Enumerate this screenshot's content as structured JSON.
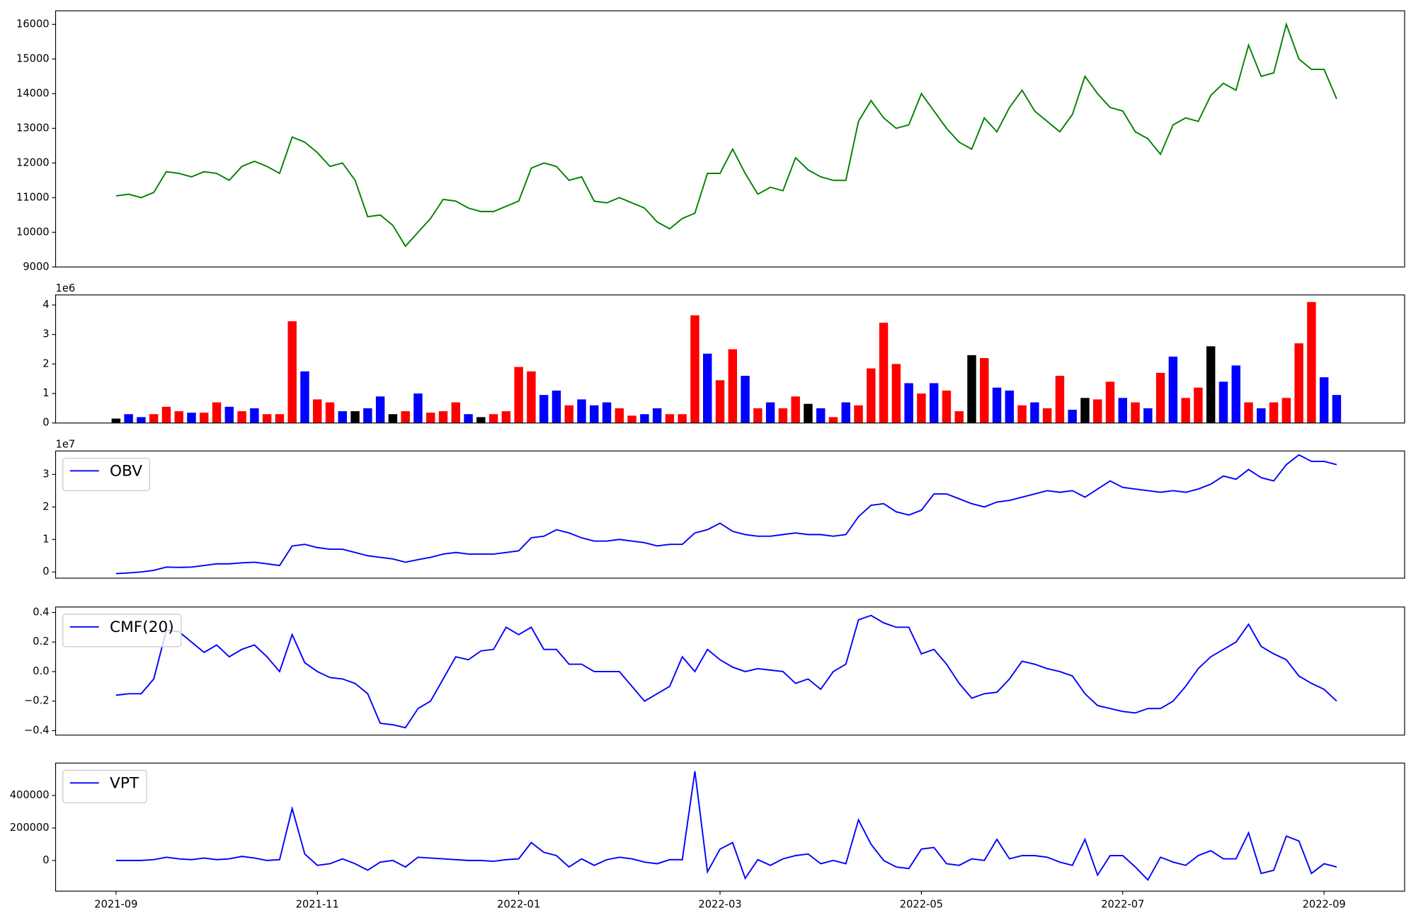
{
  "chart_data": [
    {
      "type": "line",
      "color": "#008000",
      "x": [
        0,
        0.125,
        0.25,
        0.375,
        0.5,
        0.625,
        0.75,
        0.875,
        1,
        1.125,
        1.25,
        1.375,
        1.5,
        1.625,
        1.75,
        1.875,
        2,
        2.125,
        2.25,
        2.375,
        2.5,
        2.625,
        2.75,
        2.875,
        3,
        3.125,
        3.25,
        3.375,
        3.5,
        3.625,
        3.75,
        3.875,
        4,
        4.125,
        4.25,
        4.375,
        4.5,
        4.625,
        4.75,
        4.875,
        5,
        5.125,
        5.25,
        5.375,
        5.5,
        5.625,
        5.75,
        5.875,
        6,
        6.125,
        6.25,
        6.375,
        6.5,
        6.625,
        6.75,
        6.875,
        7,
        7.125,
        7.25,
        7.375,
        7.5,
        7.625,
        7.75,
        7.875,
        8,
        8.125,
        8.25,
        8.375,
        8.5,
        8.625,
        8.75,
        8.875,
        9,
        9.125,
        9.25,
        9.375,
        9.5,
        9.625,
        9.75,
        9.875,
        10,
        10.125,
        10.25,
        10.375,
        10.5,
        10.625,
        10.75,
        10.875,
        11,
        11.125,
        11.25,
        11.375,
        11.5,
        11.625,
        11.75,
        11.875,
        12,
        12.125
      ],
      "values": [
        11050,
        11100,
        11000,
        11150,
        11750,
        11700,
        11600,
        11750,
        11700,
        11500,
        11900,
        12050,
        11900,
        11700,
        12750,
        12600,
        12300,
        11900,
        12000,
        11500,
        10450,
        10500,
        10200,
        9600,
        10000,
        10400,
        10950,
        10900,
        10700,
        10600,
        10600,
        10750,
        10900,
        11850,
        12000,
        11900,
        11500,
        11600,
        10900,
        10850,
        11000,
        10850,
        10700,
        10300,
        10100,
        10400,
        10550,
        11700,
        11700,
        12400,
        11700,
        11100,
        11300,
        11200,
        12150,
        11800,
        11600,
        11500,
        11500,
        13200,
        13800,
        13300,
        13000,
        13100,
        14000,
        13500,
        13000,
        12600,
        12400,
        13300,
        12900,
        13600,
        14100,
        13500,
        13200,
        12900,
        13400,
        14500,
        14000,
        13600,
        13500,
        12900,
        12700,
        12250,
        13100,
        13300,
        13200,
        13950,
        14300,
        14100,
        15400,
        14500,
        14600,
        16000,
        15000,
        14700,
        14700,
        13850
      ],
      "xlim": [
        -0.6,
        12.8
      ],
      "ylim": [
        9000,
        16390
      ],
      "yticks": [
        9000,
        10000,
        11000,
        12000,
        13000,
        14000,
        15000,
        16000
      ]
    },
    {
      "type": "bar",
      "offset_label": "1e6",
      "x": [
        0,
        0.125,
        0.25,
        0.375,
        0.5,
        0.625,
        0.75,
        0.875,
        1,
        1.125,
        1.25,
        1.375,
        1.5,
        1.625,
        1.75,
        1.875,
        2,
        2.125,
        2.25,
        2.375,
        2.5,
        2.625,
        2.75,
        2.875,
        3,
        3.125,
        3.25,
        3.375,
        3.5,
        3.625,
        3.75,
        3.875,
        4,
        4.125,
        4.25,
        4.375,
        4.5,
        4.625,
        4.75,
        4.875,
        5,
        5.125,
        5.25,
        5.375,
        5.5,
        5.625,
        5.75,
        5.875,
        6,
        6.125,
        6.25,
        6.375,
        6.5,
        6.625,
        6.75,
        6.875,
        7,
        7.125,
        7.25,
        7.375,
        7.5,
        7.625,
        7.75,
        7.875,
        8,
        8.125,
        8.25,
        8.375,
        8.5,
        8.625,
        8.75,
        8.875,
        9,
        9.125,
        9.25,
        9.375,
        9.5,
        9.625,
        9.75,
        9.875,
        10,
        10.125,
        10.25,
        10.375,
        10.5,
        10.625,
        10.75,
        10.875,
        11,
        11.125,
        11.25,
        11.375,
        11.5,
        11.625,
        11.75,
        11.875,
        12,
        12.125
      ],
      "values": [
        0.15,
        0.3,
        0.2,
        0.3,
        0.55,
        0.4,
        0.35,
        0.35,
        0.7,
        0.55,
        0.4,
        0.5,
        0.3,
        0.3,
        3.45,
        1.75,
        0.8,
        0.7,
        0.4,
        0.4,
        0.5,
        0.9,
        0.3,
        0.4,
        1.0,
        0.35,
        0.4,
        0.7,
        0.3,
        0.2,
        0.3,
        0.4,
        1.9,
        1.75,
        0.95,
        1.1,
        0.6,
        0.8,
        0.6,
        0.7,
        0.5,
        0.25,
        0.3,
        0.5,
        0.3,
        0.3,
        3.65,
        2.35,
        1.45,
        2.5,
        1.6,
        0.5,
        0.7,
        0.5,
        0.9,
        0.65,
        0.5,
        0.2,
        0.7,
        0.6,
        1.85,
        3.4,
        2.0,
        1.35,
        1.0,
        1.35,
        1.1,
        0.4,
        2.3,
        2.2,
        1.2,
        1.1,
        0.6,
        0.7,
        0.5,
        1.6,
        0.45,
        0.85,
        0.8,
        1.4,
        0.85,
        0.7,
        0.5,
        1.7,
        2.25,
        0.85,
        1.2,
        2.6,
        1.4,
        1.95,
        0.7,
        0.5,
        0.7,
        0.85,
        2.7,
        4.1,
        1.55,
        0.95
      ],
      "colors": [
        "black",
        "blue",
        "blue",
        "red",
        "red",
        "red",
        "blue",
        "red",
        "red",
        "blue",
        "red",
        "blue",
        "red",
        "red",
        "red",
        "blue",
        "red",
        "red",
        "blue",
        "black",
        "blue",
        "blue",
        "black",
        "red",
        "blue",
        "red",
        "red",
        "red",
        "blue",
        "black",
        "red",
        "red",
        "red",
        "red",
        "blue",
        "blue",
        "red",
        "blue",
        "blue",
        "blue",
        "red",
        "red",
        "blue",
        "blue",
        "red",
        "red",
        "red",
        "blue",
        "red",
        "red",
        "blue",
        "red",
        "blue",
        "red",
        "red",
        "black",
        "blue",
        "red",
        "blue",
        "red",
        "red",
        "red",
        "red",
        "blue",
        "red",
        "blue",
        "red",
        "red",
        "black",
        "red",
        "blue",
        "blue",
        "red",
        "blue",
        "red",
        "red",
        "blue",
        "black",
        "red",
        "red",
        "blue",
        "red",
        "blue",
        "red",
        "blue",
        "red",
        "red",
        "black",
        "blue",
        "blue",
        "red",
        "blue",
        "red",
        "red",
        "red",
        "red",
        "blue",
        "blue"
      ],
      "xlim": [
        -0.6,
        12.8
      ],
      "ylim": [
        0,
        4.34
      ],
      "yticks": [
        0,
        1,
        2,
        3,
        4
      ]
    },
    {
      "type": "line",
      "offset_label": "1e7",
      "legend": "upper left",
      "x": [
        0,
        0.125,
        0.25,
        0.375,
        0.5,
        0.625,
        0.75,
        0.875,
        1,
        1.125,
        1.25,
        1.375,
        1.5,
        1.625,
        1.75,
        1.875,
        2,
        2.125,
        2.25,
        2.375,
        2.5,
        2.625,
        2.75,
        2.875,
        3,
        3.125,
        3.25,
        3.375,
        3.5,
        3.625,
        3.75,
        3.875,
        4,
        4.125,
        4.25,
        4.375,
        4.5,
        4.625,
        4.75,
        4.875,
        5,
        5.125,
        5.25,
        5.375,
        5.5,
        5.625,
        5.75,
        5.875,
        6,
        6.125,
        6.25,
        6.375,
        6.5,
        6.625,
        6.75,
        6.875,
        7,
        7.125,
        7.25,
        7.375,
        7.5,
        7.625,
        7.75,
        7.875,
        8,
        8.125,
        8.25,
        8.375,
        8.5,
        8.625,
        8.75,
        8.875,
        9,
        9.125,
        9.25,
        9.375,
        9.5,
        9.625,
        9.75,
        9.875,
        10,
        10.125,
        10.25,
        10.375,
        10.5,
        10.625,
        10.75,
        10.875,
        11,
        11.125,
        11.25,
        11.375,
        11.5,
        11.625,
        11.75,
        11.875,
        12,
        12.125
      ],
      "series": [
        {
          "name": "OBV",
          "color": "#0000ff",
          "values": [
            -0.05,
            -0.03,
            0,
            0.05,
            0.15,
            0.14,
            0.15,
            0.2,
            0.25,
            0.25,
            0.28,
            0.3,
            0.25,
            0.2,
            0.8,
            0.85,
            0.75,
            0.7,
            0.7,
            0.6,
            0.5,
            0.45,
            0.4,
            0.3,
            0.38,
            0.45,
            0.55,
            0.6,
            0.55,
            0.55,
            0.55,
            0.6,
            0.65,
            1.05,
            1.1,
            1.3,
            1.2,
            1.05,
            0.95,
            0.95,
            1.0,
            0.95,
            0.9,
            0.8,
            0.85,
            0.85,
            1.2,
            1.3,
            1.5,
            1.25,
            1.15,
            1.1,
            1.1,
            1.15,
            1.2,
            1.15,
            1.15,
            1.1,
            1.15,
            1.7,
            2.05,
            2.1,
            1.85,
            1.75,
            1.9,
            2.4,
            2.4,
            2.25,
            2.1,
            2.0,
            2.15,
            2.2,
            2.3,
            2.4,
            2.5,
            2.45,
            2.5,
            2.3,
            2.55,
            2.8,
            2.6,
            2.55,
            2.5,
            2.45,
            2.5,
            2.45,
            2.55,
            2.7,
            2.95,
            2.85,
            3.15,
            2.9,
            2.8,
            3.3,
            3.6,
            3.4,
            3.4,
            3.3
          ]
        }
      ],
      "xlim": [
        -0.6,
        12.8
      ],
      "ylim": [
        -0.19,
        3.72
      ],
      "yticks": [
        0,
        1,
        2,
        3
      ]
    },
    {
      "type": "line",
      "legend": "upper left",
      "x": [
        0,
        0.125,
        0.25,
        0.375,
        0.5,
        0.625,
        0.75,
        0.875,
        1,
        1.125,
        1.25,
        1.375,
        1.5,
        1.625,
        1.75,
        1.875,
        2,
        2.125,
        2.25,
        2.375,
        2.5,
        2.625,
        2.75,
        2.875,
        3,
        3.125,
        3.25,
        3.375,
        3.5,
        3.625,
        3.75,
        3.875,
        4,
        4.125,
        4.25,
        4.375,
        4.5,
        4.625,
        4.75,
        4.875,
        5,
        5.125,
        5.25,
        5.375,
        5.5,
        5.625,
        5.75,
        5.875,
        6,
        6.125,
        6.25,
        6.375,
        6.5,
        6.625,
        6.75,
        6.875,
        7,
        7.125,
        7.25,
        7.375,
        7.5,
        7.625,
        7.75,
        7.875,
        8,
        8.125,
        8.25,
        8.375,
        8.5,
        8.625,
        8.75,
        8.875,
        9,
        9.125,
        9.25,
        9.375,
        9.5,
        9.625,
        9.75,
        9.875,
        10,
        10.125,
        10.25,
        10.375,
        10.5,
        10.625,
        10.75,
        10.875,
        11,
        11.125,
        11.25,
        11.375,
        11.5,
        11.625,
        11.75,
        11.875,
        12,
        12.125
      ],
      "series": [
        {
          "name": "CMF(20)",
          "color": "#0000ff",
          "values": [
            -0.16,
            -0.15,
            -0.15,
            -0.05,
            0.28,
            0.27,
            0.2,
            0.13,
            0.18,
            0.1,
            0.15,
            0.18,
            0.1,
            0.0,
            0.25,
            0.06,
            0.0,
            -0.04,
            -0.05,
            -0.08,
            -0.15,
            -0.35,
            -0.36,
            -0.38,
            -0.25,
            -0.2,
            -0.05,
            0.1,
            0.08,
            0.14,
            0.15,
            0.3,
            0.25,
            0.3,
            0.15,
            0.15,
            0.05,
            0.05,
            0.0,
            0.0,
            0.0,
            -0.1,
            -0.2,
            -0.15,
            -0.1,
            0.1,
            0.0,
            0.15,
            0.08,
            0.03,
            0.0,
            0.02,
            0.01,
            0.0,
            -0.08,
            -0.05,
            -0.12,
            0.0,
            0.05,
            0.35,
            0.38,
            0.33,
            0.3,
            0.3,
            0.12,
            0.15,
            0.05,
            -0.08,
            -0.18,
            -0.15,
            -0.14,
            -0.05,
            0.07,
            0.05,
            0.02,
            0.0,
            -0.03,
            -0.15,
            -0.23,
            -0.25,
            -0.27,
            -0.28,
            -0.25,
            -0.25,
            -0.2,
            -0.1,
            0.02,
            0.1,
            0.15,
            0.2,
            0.32,
            0.17,
            0.12,
            0.08,
            -0.03,
            -0.08,
            -0.12,
            -0.2
          ]
        }
      ],
      "xlim": [
        -0.6,
        12.8
      ],
      "ylim": [
        -0.43,
        0.437
      ],
      "yticks": [
        {
          "value": -0.4,
          "label": "−0.4"
        },
        {
          "value": -0.2,
          "label": "−0.2"
        },
        {
          "value": 0,
          "label": "0.0"
        },
        0.2,
        0.4
      ]
    },
    {
      "type": "line",
      "legend": "upper left",
      "x": [
        0,
        0.125,
        0.25,
        0.375,
        0.5,
        0.625,
        0.75,
        0.875,
        1,
        1.125,
        1.25,
        1.375,
        1.5,
        1.625,
        1.75,
        1.875,
        2,
        2.125,
        2.25,
        2.375,
        2.5,
        2.625,
        2.75,
        2.875,
        3,
        3.125,
        3.25,
        3.375,
        3.5,
        3.625,
        3.75,
        3.875,
        4,
        4.125,
        4.25,
        4.375,
        4.5,
        4.625,
        4.75,
        4.875,
        5,
        5.125,
        5.25,
        5.375,
        5.5,
        5.625,
        5.75,
        5.875,
        6,
        6.125,
        6.25,
        6.375,
        6.5,
        6.625,
        6.75,
        6.875,
        7,
        7.125,
        7.25,
        7.375,
        7.5,
        7.625,
        7.75,
        7.875,
        8,
        8.125,
        8.25,
        8.375,
        8.5,
        8.625,
        8.75,
        8.875,
        9,
        9.125,
        9.25,
        9.375,
        9.5,
        9.625,
        9.75,
        9.875,
        10,
        10.125,
        10.25,
        10.375,
        10.5,
        10.625,
        10.75,
        10.875,
        11,
        11.125,
        11.25,
        11.375,
        11.5,
        11.625,
        11.75,
        11.875,
        12,
        12.125
      ],
      "series": [
        {
          "name": "VPT",
          "color": "#0000ff",
          "values": [
            0,
            0,
            0,
            5000,
            20000,
            10000,
            5000,
            15000,
            5000,
            10000,
            25000,
            15000,
            0,
            5000,
            320000,
            40000,
            -30000,
            -20000,
            10000,
            -20000,
            -60000,
            -10000,
            0,
            -40000,
            20000,
            15000,
            10000,
            5000,
            0,
            0,
            -5000,
            5000,
            10000,
            110000,
            50000,
            30000,
            -40000,
            10000,
            -30000,
            5000,
            20000,
            10000,
            -10000,
            -20000,
            5000,
            5000,
            550000,
            -70000,
            70000,
            110000,
            -110000,
            5000,
            -30000,
            10000,
            30000,
            40000,
            -20000,
            0,
            -20000,
            250000,
            100000,
            0,
            -40000,
            -50000,
            70000,
            80000,
            -20000,
            -30000,
            10000,
            0,
            130000,
            10000,
            30000,
            30000,
            20000,
            -10000,
            -30000,
            130000,
            -90000,
            30000,
            30000,
            -40000,
            -120000,
            20000,
            -10000,
            -30000,
            30000,
            60000,
            10000,
            10000,
            170000,
            -80000,
            -60000,
            150000,
            120000,
            -80000,
            -20000,
            -40000
          ]
        }
      ],
      "xlim": [
        -0.6,
        12.8
      ],
      "ylim": [
        -188900,
        600000
      ],
      "yticks": [
        0,
        200000,
        400000
      ],
      "xticks": [
        {
          "value": 0,
          "label": "2021-09"
        },
        {
          "value": 2,
          "label": "2021-11"
        },
        {
          "value": 4,
          "label": "2022-01"
        },
        {
          "value": 6,
          "label": "2022-03"
        },
        {
          "value": 8,
          "label": "2022-05"
        },
        {
          "value": 10,
          "label": "2022-07"
        },
        {
          "value": 12,
          "label": "2022-09"
        }
      ]
    }
  ]
}
